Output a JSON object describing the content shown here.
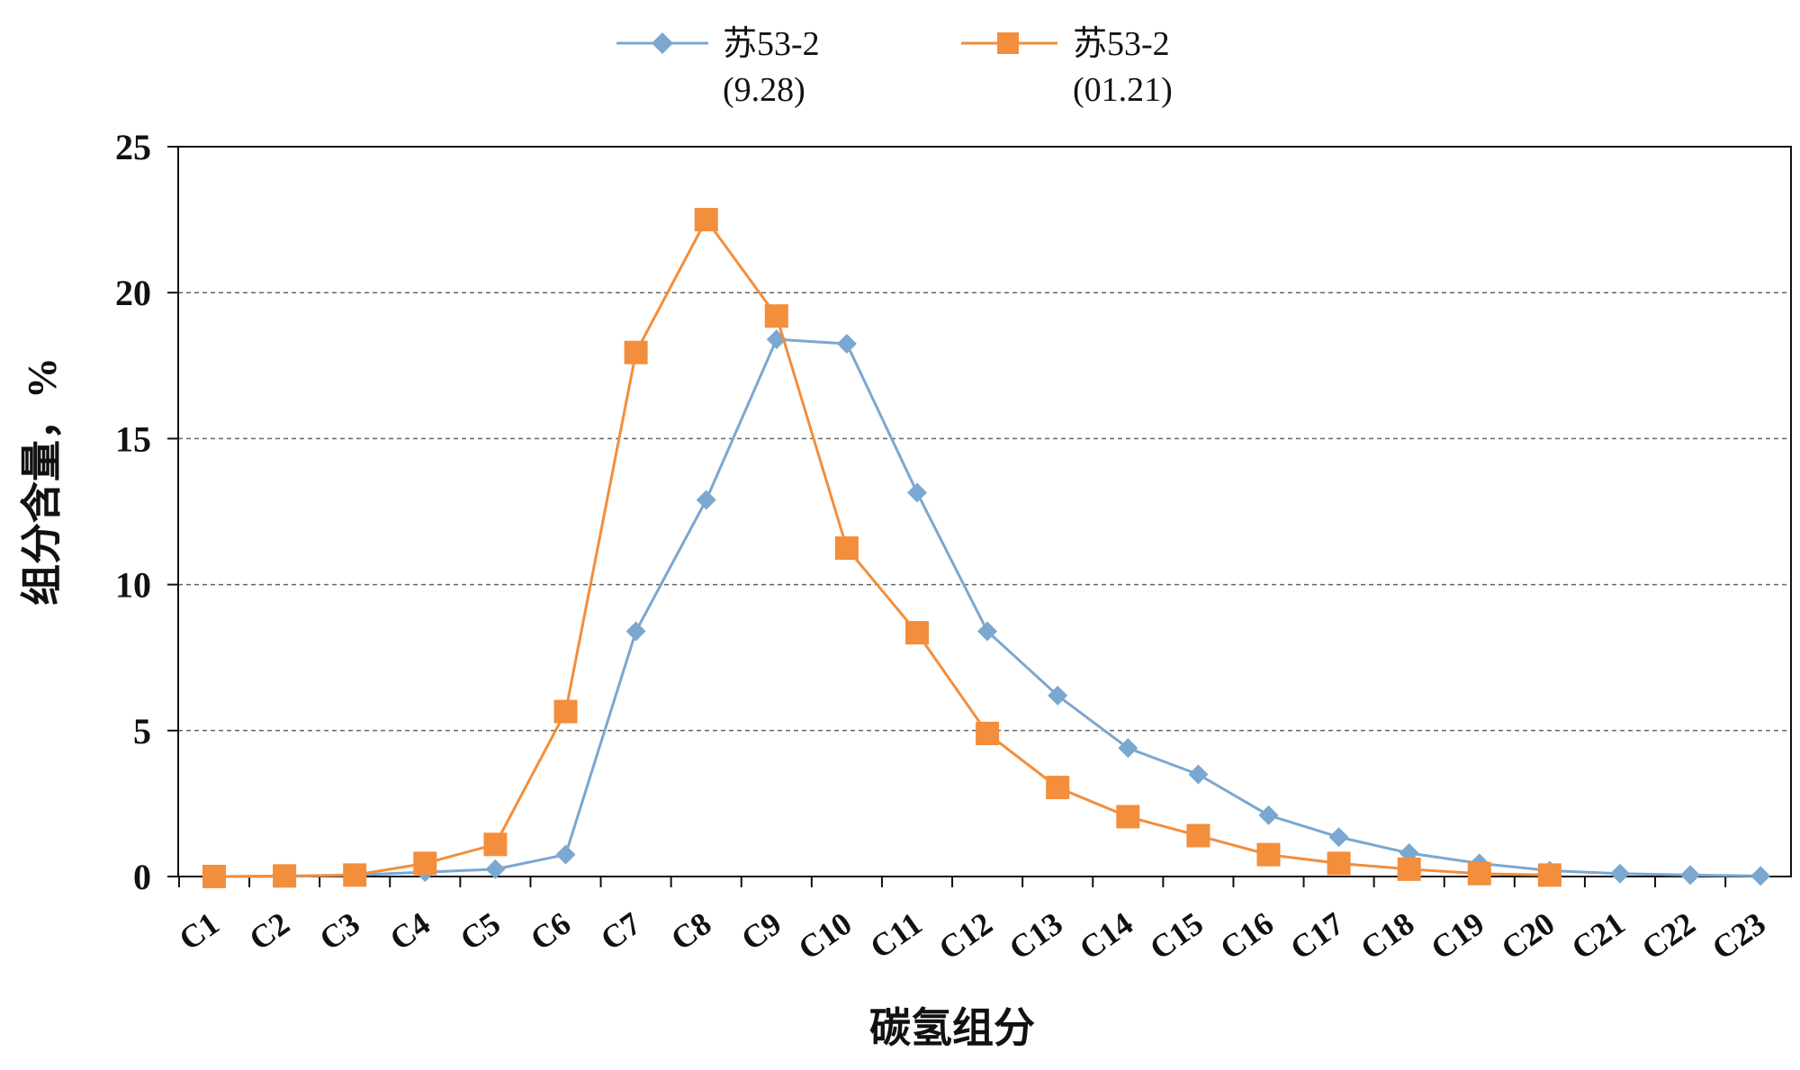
{
  "chart_data": {
    "type": "line",
    "title": "",
    "xlabel": "碳氢组分",
    "ylabel": "组分含量，%",
    "ylim": [
      0,
      25
    ],
    "yticks": [
      0,
      5,
      10,
      15,
      20,
      25
    ],
    "grid": "horizontal-dashed",
    "legend_position": "top-center",
    "categories": [
      "C1",
      "C2",
      "C3",
      "C4",
      "C5",
      "C6",
      "C7",
      "C8",
      "C9",
      "C10",
      "C11",
      "C12",
      "C13",
      "C14",
      "C15",
      "C16",
      "C17",
      "C18",
      "C19",
      "C20",
      "C21",
      "C22",
      "C23"
    ],
    "series": [
      {
        "name_line1": "苏53-2",
        "name_line2": "(9.28)",
        "color": "#7ba7d0",
        "marker": "diamond",
        "values": [
          0,
          0,
          0.05,
          0.15,
          0.25,
          0.75,
          8.4,
          12.9,
          18.4,
          18.25,
          13.15,
          8.4,
          6.2,
          4.4,
          3.5,
          2.1,
          1.35,
          0.8,
          0.45,
          0.2,
          0.1,
          0.05,
          0.02
        ]
      },
      {
        "name_line1": "苏53-2",
        "name_line2": "(01.21)",
        "color": "#f28e3c",
        "marker": "square",
        "values": [
          0,
          0.02,
          0.05,
          0.45,
          1.1,
          5.65,
          17.95,
          22.5,
          19.2,
          11.25,
          8.35,
          4.9,
          3.05,
          2.05,
          1.4,
          0.75,
          0.45,
          0.25,
          0.1,
          0.05,
          null,
          null,
          null
        ]
      }
    ]
  }
}
